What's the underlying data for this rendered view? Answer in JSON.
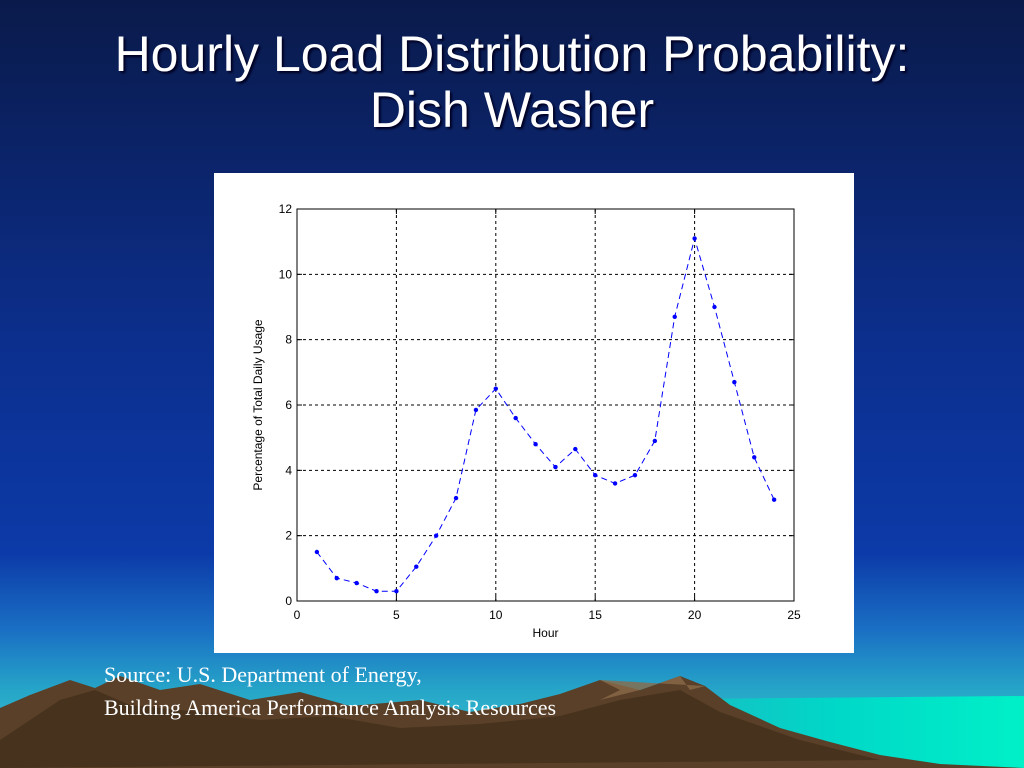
{
  "slide": {
    "title_line1": "Hourly Load Distribution Probability:",
    "title_line2": "Dish Washer",
    "source_line1": "Source: U.S. Department of Energy,",
    "source_line2": "Building America Performance Analysis Resources"
  },
  "colors": {
    "background_top": "#0a1a4a",
    "background_mid": "#0c3aa8",
    "mountain": "#5a4028",
    "water": "#00e0c0",
    "series": "#0000ff"
  },
  "chart_data": {
    "type": "line",
    "title": "",
    "xlabel": "Hour",
    "ylabel": "Percentage of Total Daily Usage",
    "xlim": [
      0,
      25
    ],
    "ylim": [
      0,
      12
    ],
    "xticks": [
      0,
      5,
      10,
      15,
      20,
      25
    ],
    "yticks": [
      0,
      2,
      4,
      6,
      8,
      10,
      12
    ],
    "grid": true,
    "line_style": "dashed",
    "marker": "dot",
    "x": [
      1,
      2,
      3,
      4,
      5,
      6,
      7,
      8,
      9,
      10,
      11,
      12,
      13,
      14,
      15,
      16,
      17,
      18,
      19,
      20,
      21,
      22,
      23,
      24
    ],
    "y": [
      1.5,
      0.7,
      0.55,
      0.3,
      0.3,
      1.05,
      2.0,
      3.15,
      5.85,
      6.5,
      5.6,
      4.8,
      4.1,
      4.65,
      3.85,
      3.6,
      3.85,
      4.9,
      8.7,
      11.1,
      9.0,
      6.7,
      4.4,
      3.1
    ]
  }
}
